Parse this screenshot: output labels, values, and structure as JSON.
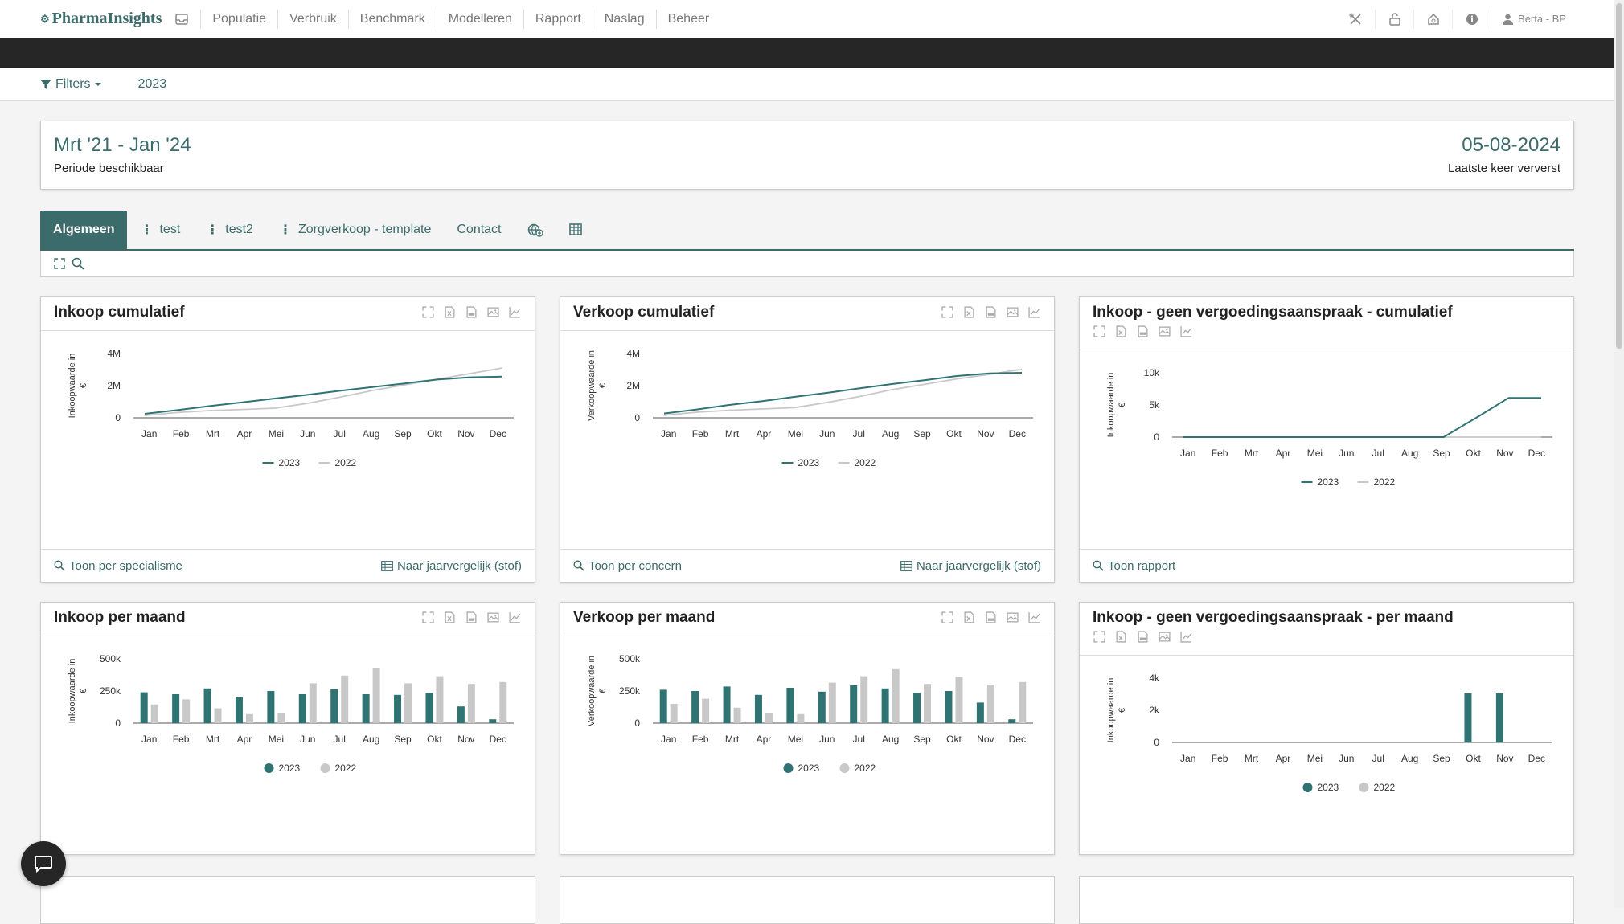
{
  "app": {
    "logo": "PharmaInsights",
    "nav": [
      "Populatie",
      "Verbruik",
      "Benchmark",
      "Modelleren",
      "Rapport",
      "Naslag",
      "Beheer"
    ],
    "user": "Berta - BP"
  },
  "filterbar": {
    "filters_label": "Filters",
    "year": "2023"
  },
  "period": {
    "range": "Mrt '21 - Jan '24",
    "range_label": "Periode beschikbaar",
    "refreshed": "05-08-2024",
    "refreshed_label": "Laatste keer ververst"
  },
  "tabs": [
    {
      "label": "Algemeen",
      "active": true,
      "menu": false
    },
    {
      "label": "test",
      "active": false,
      "menu": true
    },
    {
      "label": "test2",
      "active": false,
      "menu": true
    },
    {
      "label": "Zorgverkoop - template",
      "active": false,
      "menu": true
    },
    {
      "label": "Contact",
      "active": false,
      "menu": false
    }
  ],
  "colors": {
    "accent": "#3c6b6b",
    "series_2023": "#2f7373",
    "series_2022": "#c8c8c8"
  },
  "cards": [
    {
      "title": "Inkoop cumulatief",
      "footer_left": "Toon per specialisme",
      "footer_right": "Naar jaarvergelijk (stof)",
      "chart_data": {
        "type": "line",
        "ylabel": "Inkoopwaarde in €",
        "ylim": [
          0,
          4000000
        ],
        "yticks": [
          "0",
          "2M",
          "4M"
        ],
        "categories": [
          "Jan",
          "Feb",
          "Mrt",
          "Apr",
          "Mei",
          "Jun",
          "Jul",
          "Aug",
          "Sep",
          "Okt",
          "Nov",
          "Dec"
        ],
        "series": [
          {
            "name": "2023",
            "values": [
              250000,
              480000,
              730000,
              960000,
              1200000,
              1430000,
              1680000,
              1910000,
              2140000,
              2380000,
              2520000,
              2560000
            ]
          },
          {
            "name": "2022",
            "values": [
              150000,
              330000,
              450000,
              520000,
              600000,
              900000,
              1280000,
              1700000,
              2050000,
              2400000,
              2750000,
              3100000
            ]
          }
        ]
      }
    },
    {
      "title": "Verkoop cumulatief",
      "footer_left": "Toon per concern",
      "footer_right": "Naar jaarvergelijk (stof)",
      "chart_data": {
        "type": "line",
        "ylabel": "Verkoopwaarde in €",
        "ylim": [
          0,
          4000000
        ],
        "yticks": [
          "0",
          "2M",
          "4M"
        ],
        "categories": [
          "Jan",
          "Feb",
          "Mrt",
          "Apr",
          "Mei",
          "Jun",
          "Jul",
          "Aug",
          "Sep",
          "Okt",
          "Nov",
          "Dec"
        ],
        "series": [
          {
            "name": "2023",
            "values": [
              270000,
              520000,
              800000,
              1030000,
              1300000,
              1550000,
              1830000,
              2100000,
              2340000,
              2600000,
              2760000,
              2800000
            ]
          },
          {
            "name": "2022",
            "values": [
              160000,
              350000,
              470000,
              550000,
              630000,
              950000,
              1320000,
              1750000,
              2080000,
              2420000,
              2700000,
              3020000
            ]
          }
        ]
      }
    },
    {
      "title": "Inkoop - geen vergoedingsaanspraak - cumulatief",
      "footer_left": "Toon rapport",
      "footer_right": "",
      "chart_data": {
        "type": "line",
        "ylabel": "Inkoopwaarde in €",
        "ylim": [
          0,
          10000
        ],
        "yticks": [
          "0",
          "5k",
          "10k"
        ],
        "categories": [
          "Jan",
          "Feb",
          "Mrt",
          "Apr",
          "Mei",
          "Jun",
          "Jul",
          "Aug",
          "Sep",
          "Okt",
          "Nov",
          "Dec"
        ],
        "series": [
          {
            "name": "2023",
            "values": [
              0,
              0,
              0,
              0,
              0,
              0,
              0,
              0,
              0,
              3000,
              6100,
              6100
            ]
          },
          {
            "name": "2022",
            "values": [
              0,
              0,
              0,
              0,
              0,
              0,
              0,
              0,
              0,
              0,
              0,
              0
            ]
          }
        ]
      }
    },
    {
      "title": "Inkoop per maand",
      "footer_left": "",
      "footer_right": "",
      "chart_data": {
        "type": "bar",
        "ylabel": "Inkoopwaarde in €",
        "ylim": [
          0,
          500000
        ],
        "yticks": [
          "0",
          "250k",
          "500k"
        ],
        "categories": [
          "Jan",
          "Feb",
          "Mrt",
          "Apr",
          "Mei",
          "Jun",
          "Jul",
          "Aug",
          "Sep",
          "Okt",
          "Nov",
          "Dec"
        ],
        "series": [
          {
            "name": "2023",
            "values": [
              240000,
              225000,
              270000,
              200000,
              250000,
              225000,
              265000,
              225000,
              220000,
              235000,
              130000,
              30000
            ]
          },
          {
            "name": "2022",
            "values": [
              145000,
              185000,
              115000,
              70000,
              75000,
              310000,
              370000,
              425000,
              310000,
              365000,
              305000,
              320000
            ]
          }
        ]
      }
    },
    {
      "title": "Verkoop per maand",
      "footer_left": "",
      "footer_right": "",
      "chart_data": {
        "type": "bar",
        "ylabel": "Verkoopwaarde in €",
        "ylim": [
          0,
          500000
        ],
        "yticks": [
          "0",
          "250k",
          "500k"
        ],
        "categories": [
          "Jan",
          "Feb",
          "Mrt",
          "Apr",
          "Mei",
          "Jun",
          "Jul",
          "Aug",
          "Sep",
          "Okt",
          "Nov",
          "Dec"
        ],
        "series": [
          {
            "name": "2023",
            "values": [
              260000,
              250000,
              285000,
              220000,
              275000,
              245000,
              295000,
              270000,
              235000,
              250000,
              160000,
              30000
            ]
          },
          {
            "name": "2022",
            "values": [
              150000,
              190000,
              120000,
              75000,
              70000,
              315000,
              365000,
              420000,
              305000,
              360000,
              300000,
              320000
            ]
          }
        ]
      }
    },
    {
      "title": "Inkoop - geen vergoedingsaanspraak - per maand",
      "footer_left": "",
      "footer_right": "",
      "chart_data": {
        "type": "bar",
        "ylabel": "Inkoopwaarde in €",
        "ylim": [
          0,
          4000
        ],
        "yticks": [
          "0",
          "2k",
          "4k"
        ],
        "categories": [
          "Jan",
          "Feb",
          "Mrt",
          "Apr",
          "Mei",
          "Jun",
          "Jul",
          "Aug",
          "Sep",
          "Okt",
          "Nov",
          "Dec"
        ],
        "series": [
          {
            "name": "2023",
            "values": [
              0,
              0,
              0,
              0,
              0,
              0,
              0,
              0,
              0,
              3050,
              3050,
              0
            ]
          },
          {
            "name": "2022",
            "values": [
              0,
              0,
              0,
              0,
              0,
              0,
              0,
              0,
              0,
              0,
              0,
              0
            ]
          }
        ]
      }
    }
  ]
}
